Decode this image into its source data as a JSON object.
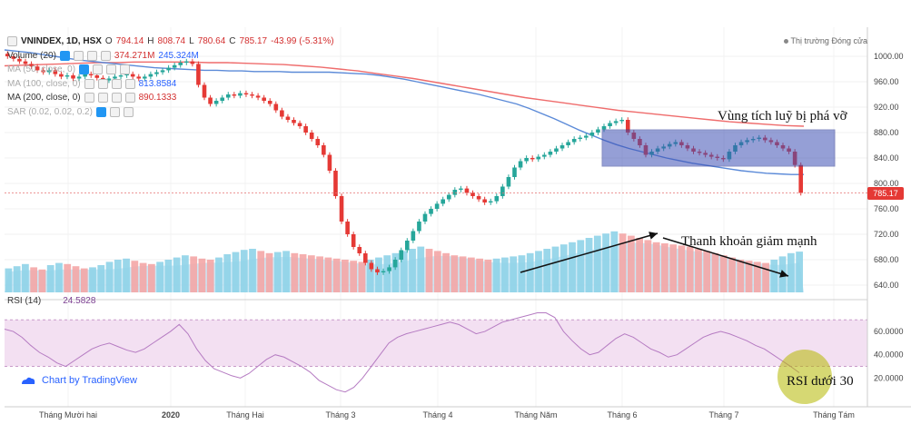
{
  "header": {
    "symbol": "VNINDEX, 1D, HSX",
    "open_label": "O",
    "open": "794.14",
    "high_label": "H",
    "high": "808.74",
    "low_label": "L",
    "low": "780.64",
    "close_label": "C",
    "close": "785.17",
    "change": "-43.99 (-5.31%)",
    "market_status": "Thị trường Đóng cửa"
  },
  "indicators": [
    {
      "label": "Volume (20)",
      "values": [
        "374.271M",
        "245.324M"
      ]
    },
    {
      "label": "MA (50, close, 0)",
      "values": []
    },
    {
      "label": "MA (100, close, 0)",
      "values": [
        "813.8584"
      ]
    },
    {
      "label": "MA (200, close, 0)",
      "values": [
        "890.1333"
      ]
    },
    {
      "label": "SAR (0.02, 0.02, 0.2)",
      "values": []
    }
  ],
  "rsi": {
    "label": "RSI (14)",
    "value": "24.5828"
  },
  "brand": "Chart by TradingView",
  "annotations": {
    "zone": "Vùng tích luỹ bị phá vỡ",
    "liquidity": "Thanh khoản giảm mạnh",
    "rsi": "RSI dưới 30"
  },
  "last_price_tag": "785.17",
  "colors": {
    "up": "#26a69a",
    "down": "#e53935",
    "ma100": "#5b8ad8",
    "ma200": "#ef6c6c",
    "volume_up": "#8fd3e8",
    "volume_down": "#f4a6a6",
    "rsi_line": "#b57bc2",
    "rsi_band": "#f3e0f2",
    "zone_box": "#3f51b5",
    "highlight": "#b5b800"
  },
  "chart_data": {
    "type": "candlestick",
    "x_ticks": [
      "Tháng Mười hai",
      "2020",
      "Tháng Hai",
      "Tháng 3",
      "Tháng 4",
      "Tháng Năm",
      "Tháng 6",
      "Tháng 7",
      "Tháng Tám"
    ],
    "price_axis": {
      "ticks": [
        1000,
        960,
        920,
        880,
        840,
        800,
        760,
        720,
        680,
        640
      ],
      "tick_labels": [
        "1000.00",
        "960.00",
        "920.00",
        "880.00",
        "840.00",
        "800.00",
        "760.00",
        "720.00",
        "680.00",
        "640.00"
      ],
      "range": [
        620,
        1020
      ]
    },
    "rsi_axis": {
      "ticks": [
        60,
        40,
        20
      ],
      "tick_labels": [
        "60.0000",
        "40.0000",
        "20.0000"
      ],
      "band": [
        30,
        70
      ],
      "range": [
        0,
        85
      ]
    },
    "close_series": [
      1000,
      996,
      992,
      988,
      984,
      978,
      975,
      978,
      972,
      968,
      970,
      965,
      968,
      972,
      970,
      966,
      962,
      965,
      968,
      970,
      972,
      968,
      965,
      968,
      972,
      975,
      978,
      982,
      986,
      990,
      992,
      988,
      955,
      935,
      925,
      930,
      935,
      940,
      938,
      942,
      940,
      938,
      935,
      930,
      925,
      915,
      905,
      900,
      895,
      890,
      880,
      870,
      860,
      845,
      820,
      780,
      740,
      720,
      700,
      690,
      675,
      665,
      660,
      662,
      668,
      680,
      695,
      710,
      725,
      740,
      752,
      760,
      768,
      775,
      782,
      790,
      792,
      785,
      780,
      775,
      770,
      772,
      780,
      795,
      810,
      825,
      835,
      840,
      838,
      842,
      845,
      850,
      855,
      860,
      865,
      870,
      872,
      875,
      880,
      885,
      890,
      895,
      898,
      900,
      880,
      870,
      860,
      845,
      850,
      855,
      858,
      862,
      865,
      860,
      855,
      850,
      848,
      845,
      842,
      840,
      838,
      850,
      860,
      865,
      868,
      870,
      872,
      868,
      865,
      860,
      855,
      850,
      829,
      785
    ],
    "ma100": [
      1010,
      1008,
      1006,
      1003,
      1000,
      997,
      994,
      992,
      990,
      988,
      986,
      984,
      982,
      981,
      980,
      979,
      978,
      978,
      977,
      977,
      976,
      976,
      976,
      975,
      975,
      975,
      975,
      974,
      973,
      972,
      970,
      967,
      964,
      960,
      956,
      952,
      948,
      944,
      940,
      935,
      930,
      925,
      918,
      910,
      902,
      893,
      884,
      876,
      868,
      861,
      855,
      850,
      845,
      840,
      836,
      832,
      829,
      826,
      823,
      820,
      818,
      816,
      815,
      814,
      814
    ],
    "ma200": [
      985,
      986,
      987,
      988,
      989,
      990,
      990,
      991,
      991,
      991,
      991,
      990,
      990,
      989,
      988,
      987,
      985,
      983,
      980,
      977,
      973,
      969,
      965,
      960,
      955,
      950,
      945,
      940,
      935,
      931,
      927,
      923,
      919,
      915,
      912,
      909,
      906,
      903,
      900,
      897,
      895,
      893,
      891,
      890
    ],
    "volume": [
      220,
      240,
      260,
      230,
      210,
      250,
      270,
      260,
      240,
      220,
      230,
      250,
      280,
      300,
      310,
      290,
      270,
      260,
      280,
      300,
      320,
      340,
      330,
      310,
      300,
      320,
      350,
      370,
      390,
      400,
      380,
      360,
      370,
      380,
      360,
      350,
      340,
      330,
      320,
      310,
      300,
      290,
      280,
      300,
      320,
      340,
      360,
      380,
      400,
      420,
      400,
      380,
      360,
      340,
      330,
      320,
      310,
      300,
      310,
      320,
      330,
      340,
      360,
      380,
      400,
      420,
      440,
      460,
      480,
      500,
      520,
      540,
      560,
      540,
      520,
      500,
      480,
      460,
      450,
      440,
      430,
      420,
      400,
      380,
      360,
      340,
      320,
      300,
      290,
      280,
      270,
      300,
      330,
      360,
      374
    ],
    "rsi": [
      62,
      60,
      55,
      48,
      42,
      38,
      33,
      30,
      35,
      40,
      45,
      48,
      50,
      47,
      44,
      42,
      45,
      50,
      55,
      60,
      66,
      58,
      45,
      35,
      28,
      25,
      22,
      20,
      24,
      30,
      36,
      40,
      38,
      34,
      30,
      25,
      18,
      14,
      10,
      8,
      12,
      20,
      30,
      40,
      50,
      55,
      58,
      60,
      62,
      64,
      66,
      68,
      66,
      62,
      58,
      60,
      64,
      68,
      70,
      72,
      74,
      76,
      76,
      72,
      60,
      52,
      45,
      40,
      42,
      48,
      54,
      58,
      55,
      50,
      45,
      42,
      38,
      40,
      45,
      50,
      55,
      58,
      60,
      58,
      55,
      52,
      48,
      45,
      40,
      35,
      30,
      24.58
    ]
  }
}
